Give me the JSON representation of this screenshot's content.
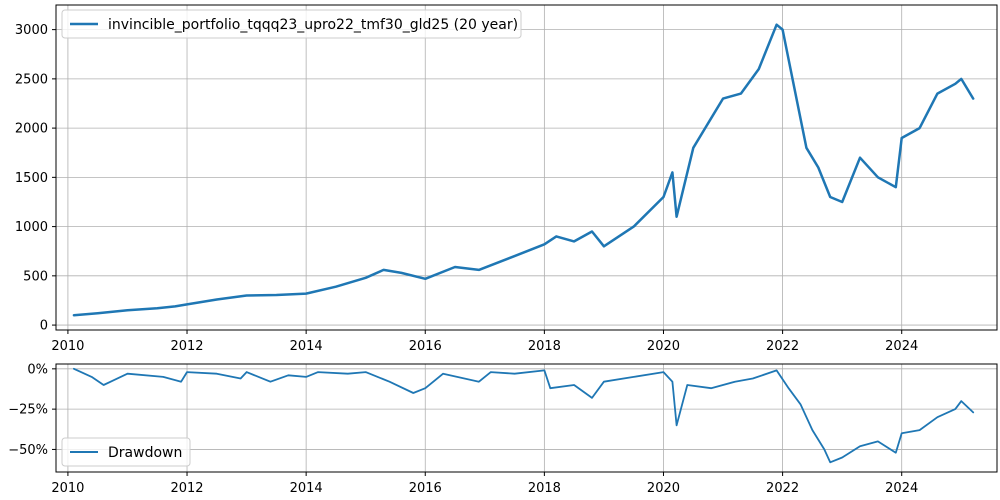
{
  "chart_data": [
    {
      "type": "line",
      "legend_placement": "top-left",
      "grid": true,
      "x_ticks": [
        "2010",
        "2012",
        "2014",
        "2016",
        "2018",
        "2020",
        "2022",
        "2024"
      ],
      "y_ticks": [
        "0",
        "500",
        "1000",
        "1500",
        "2000",
        "2500",
        "3000"
      ],
      "xlim": [
        2009.8,
        2025.6
      ],
      "ylim": [
        -50,
        3250
      ],
      "series": [
        {
          "name": "invincible_portfolio_tqqq23_upro22_tmf30_gld25 (20 year)",
          "color": "#1f77b4",
          "x": [
            2010.1,
            2010.5,
            2011.0,
            2011.5,
            2011.8,
            2012.0,
            2012.5,
            2013.0,
            2013.5,
            2014.0,
            2014.5,
            2015.0,
            2015.3,
            2015.6,
            2016.0,
            2016.5,
            2016.9,
            2017.5,
            2018.0,
            2018.2,
            2018.5,
            2018.8,
            2019.0,
            2019.5,
            2020.0,
            2020.15,
            2020.22,
            2020.5,
            2020.8,
            2021.0,
            2021.3,
            2021.6,
            2021.9,
            2022.0,
            2022.2,
            2022.4,
            2022.6,
            2022.8,
            2023.0,
            2023.3,
            2023.6,
            2023.9,
            2024.0,
            2024.3,
            2024.6,
            2024.9,
            2025.0,
            2025.2
          ],
          "y": [
            100,
            120,
            150,
            170,
            190,
            210,
            260,
            300,
            305,
            320,
            390,
            480,
            560,
            530,
            470,
            590,
            560,
            700,
            820,
            900,
            850,
            950,
            800,
            1000,
            1300,
            1550,
            1100,
            1800,
            2100,
            2300,
            2350,
            2600,
            3050,
            3000,
            2400,
            1800,
            1600,
            1300,
            1250,
            1700,
            1500,
            1400,
            1900,
            2000,
            2350,
            2450,
            2500,
            2300
          ]
        }
      ]
    },
    {
      "type": "line",
      "legend_placement": "bottom-left",
      "grid": true,
      "x_ticks": [
        "2010",
        "2012",
        "2014",
        "2016",
        "2018",
        "2020",
        "2022",
        "2024"
      ],
      "y_ticks": [
        "0%",
        "−25%",
        "−50%"
      ],
      "xlim": [
        2009.8,
        2025.6
      ],
      "ylim": [
        -64,
        3
      ],
      "series": [
        {
          "name": "Drawdown",
          "color": "#1f77b4",
          "x": [
            2010.1,
            2010.4,
            2010.6,
            2011.0,
            2011.6,
            2011.9,
            2012.0,
            2012.5,
            2012.9,
            2013.0,
            2013.4,
            2013.7,
            2014.0,
            2014.2,
            2014.7,
            2015.0,
            2015.4,
            2015.8,
            2016.0,
            2016.3,
            2016.9,
            2017.1,
            2017.5,
            2018.0,
            2018.1,
            2018.5,
            2018.8,
            2019.0,
            2019.5,
            2020.0,
            2020.15,
            2020.22,
            2020.4,
            2020.8,
            2021.2,
            2021.5,
            2021.9,
            2022.1,
            2022.3,
            2022.5,
            2022.7,
            2022.8,
            2023.0,
            2023.3,
            2023.6,
            2023.9,
            2024.0,
            2024.3,
            2024.6,
            2024.9,
            2025.0,
            2025.2
          ],
          "y": [
            0,
            -5,
            -10,
            -3,
            -5,
            -8,
            -2,
            -3,
            -6,
            -2,
            -8,
            -4,
            -5,
            -2,
            -3,
            -2,
            -8,
            -15,
            -12,
            -3,
            -8,
            -2,
            -3,
            -1,
            -12,
            -10,
            -18,
            -8,
            -5,
            -2,
            -8,
            -35,
            -10,
            -12,
            -8,
            -6,
            -1,
            -12,
            -22,
            -38,
            -50,
            -58,
            -55,
            -48,
            -45,
            -52,
            -40,
            -38,
            -30,
            -25,
            -20,
            -27
          ]
        }
      ]
    }
  ]
}
